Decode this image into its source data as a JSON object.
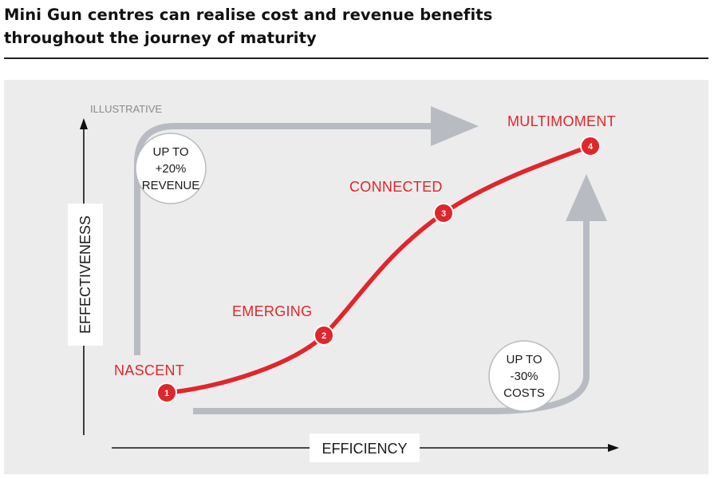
{
  "headline": {
    "line1": "Mini Gun centres can realise cost and revenue benefits",
    "line2": "throughout the journey of maturity"
  },
  "diagram": {
    "tag": "ILLUSTRATIVE",
    "y_axis_label": "EFFECTIVENESS",
    "x_axis_label": "EFFICIENCY",
    "revenue_bubble": {
      "line1": "UP TO",
      "line2": "+20%",
      "line3": "REVENUE"
    },
    "costs_bubble": {
      "line1": "UP TO",
      "line2": "-30%",
      "line3": "COSTS"
    },
    "stages": [
      {
        "number": "1",
        "label": "NASCENT"
      },
      {
        "number": "2",
        "label": "EMERGING"
      },
      {
        "number": "3",
        "label": "CONNECTED"
      },
      {
        "number": "4",
        "label": "MULTIMOMENT"
      }
    ],
    "colors": {
      "curve": "#e0262a",
      "arrow_grey": "#b8bcc2",
      "panel": "#ececec",
      "axis": "#111111"
    }
  }
}
